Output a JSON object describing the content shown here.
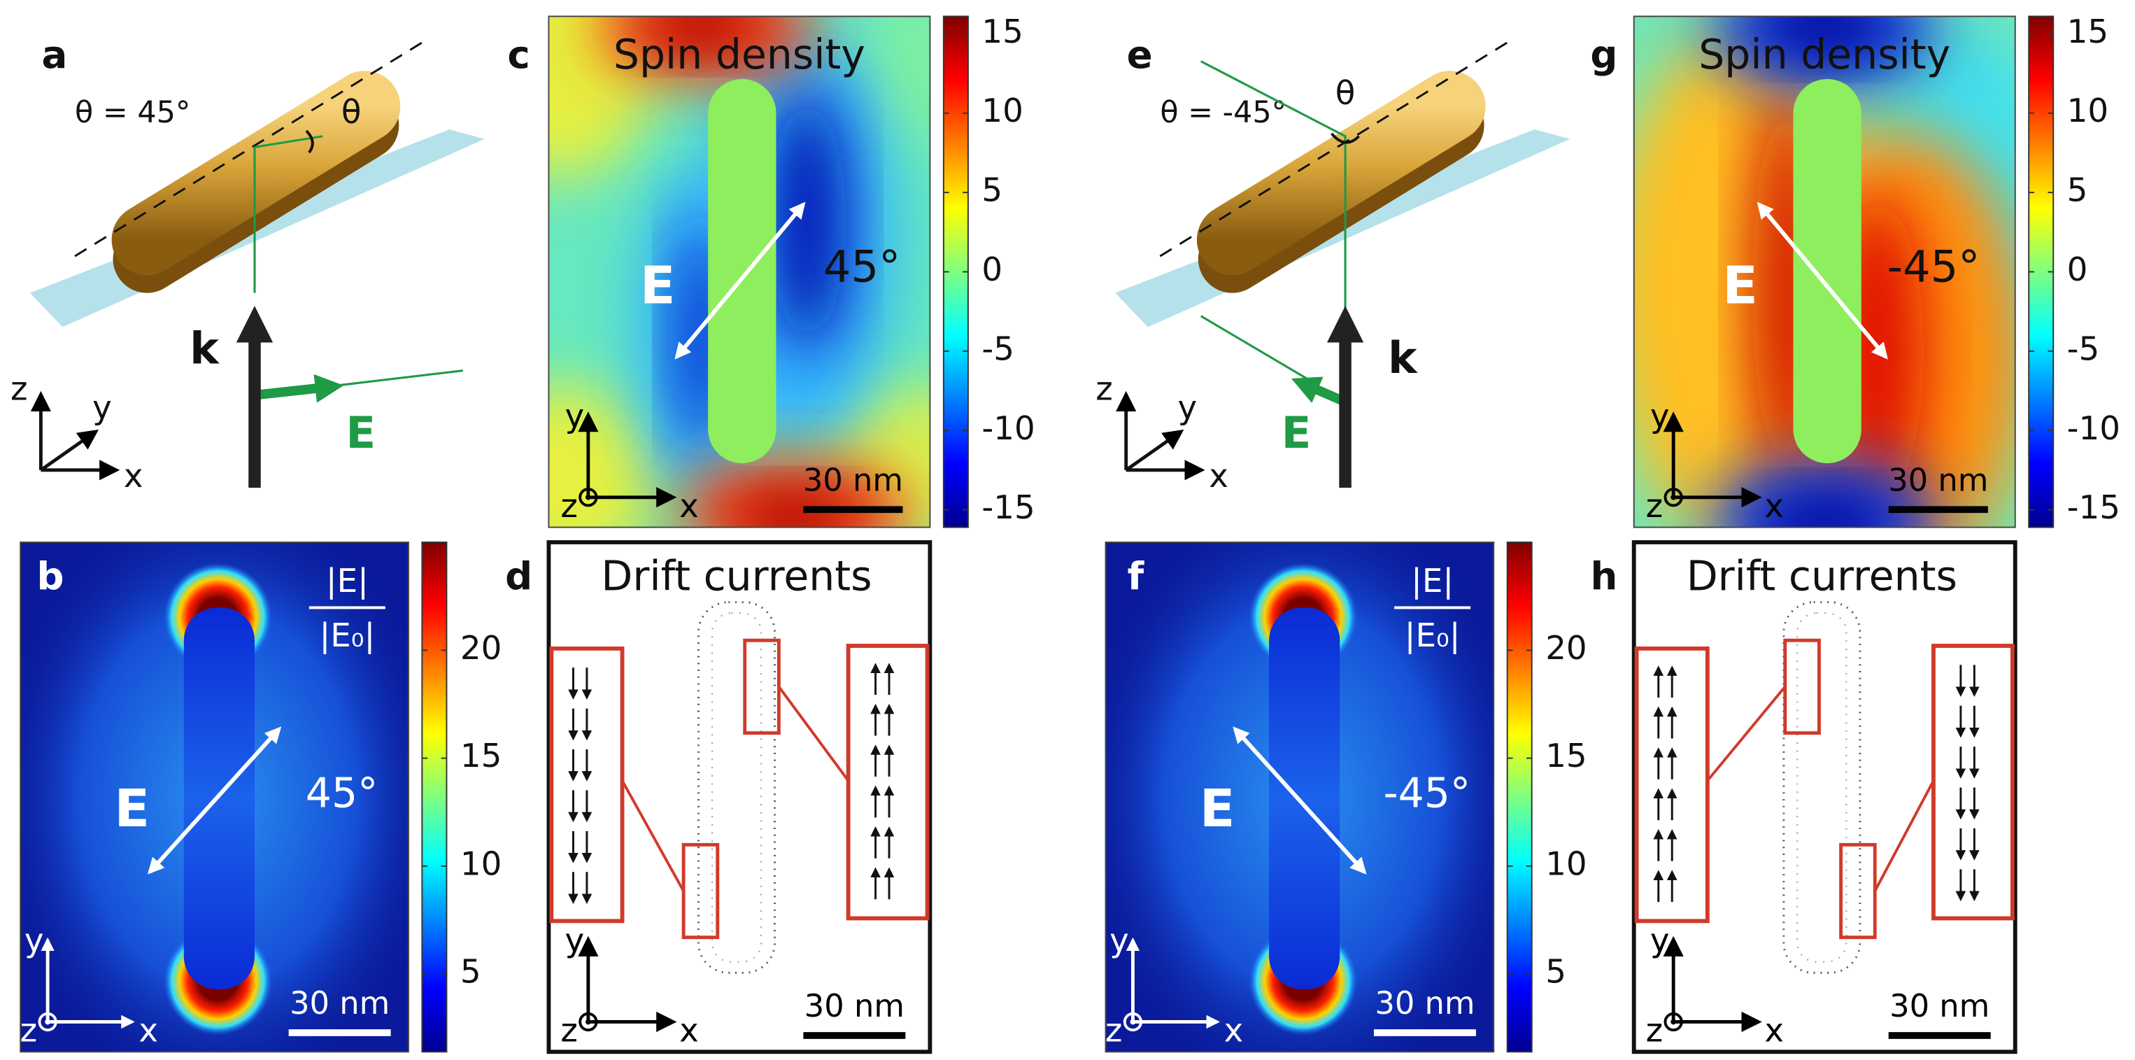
{
  "panels": [
    {
      "type": "schematic",
      "label": "a",
      "angle_label": "θ = 45°",
      "theta": "θ",
      "k": "k",
      "E": "E",
      "axes": [
        "x",
        "y",
        "z"
      ]
    },
    {
      "type": "field-map",
      "label": "b",
      "quantity": [
        "|E|",
        "|E₀|"
      ],
      "E": "E",
      "angle": "45°",
      "scale_bar": "30 nm",
      "axes": [
        "x",
        "y",
        "z"
      ],
      "colorbar": {
        "lim": [
          1.4,
          25
        ],
        "ticks": [
          20,
          15,
          10,
          5
        ]
      }
    },
    {
      "type": "spin-map",
      "label": "c",
      "title": "Spin density",
      "E": "E",
      "angle": "45°",
      "scale_bar": "30 nm",
      "axes": [
        "x",
        "y",
        "z"
      ],
      "colorbar": {
        "lim": [
          -16.1,
          16.1
        ],
        "ticks": [
          15,
          10,
          5,
          0,
          -5,
          -10,
          -15
        ]
      }
    },
    {
      "type": "drift-map",
      "label": "d",
      "title": "Drift currents",
      "scale_bar": "30 nm",
      "axes": [
        "x",
        "y",
        "z"
      ]
    },
    {
      "type": "schematic",
      "label": "e",
      "angle_label": "θ = -45°",
      "theta": "θ",
      "k": "k",
      "E": "E",
      "axes": [
        "x",
        "y",
        "z"
      ]
    },
    {
      "type": "field-map",
      "label": "f",
      "quantity": [
        "|E|",
        "|E₀|"
      ],
      "E": "E",
      "angle": "-45°",
      "scale_bar": "30 nm",
      "axes": [
        "x",
        "y",
        "z"
      ],
      "colorbar": {
        "lim": [
          1.4,
          25
        ],
        "ticks": [
          20,
          15,
          10,
          5
        ]
      }
    },
    {
      "type": "spin-map",
      "label": "g",
      "title": "Spin density",
      "E": "E",
      "angle": "-45°",
      "scale_bar": "30 nm",
      "axes": [
        "x",
        "y",
        "z"
      ],
      "colorbar": {
        "lim": [
          -16.1,
          16.1
        ],
        "ticks": [
          15,
          10,
          5,
          0,
          -5,
          -10,
          -15
        ]
      }
    },
    {
      "type": "drift-map",
      "label": "h",
      "title": "Drift currents",
      "scale_bar": "30 nm",
      "axes": [
        "x",
        "y",
        "z"
      ]
    }
  ]
}
